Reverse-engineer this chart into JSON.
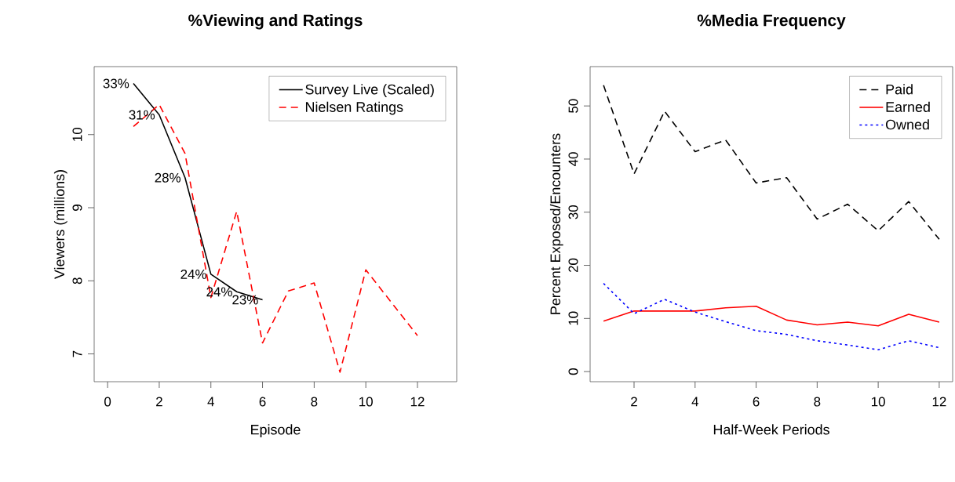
{
  "chart_data": [
    {
      "type": "line",
      "title": "%Viewing and Ratings",
      "xlabel": "Episode",
      "ylabel": "Viewers (millions)",
      "xlim": [
        -0.52,
        13.52
      ],
      "ylim": [
        6.62,
        10.93
      ],
      "xticks": [
        0,
        2,
        4,
        6,
        8,
        10,
        12
      ],
      "yticks": [
        7,
        8,
        9,
        10
      ],
      "legend": "top right",
      "annotations": [
        {
          "text": "33%",
          "x": 1,
          "y": 10.7
        },
        {
          "text": "31%",
          "x": 2,
          "y": 10.27
        },
        {
          "text": "28%",
          "x": 3,
          "y": 9.41
        },
        {
          "text": "24%",
          "x": 4,
          "y": 8.09
        },
        {
          "text": "24%",
          "x": 5,
          "y": 7.85
        },
        {
          "text": "23%",
          "x": 6,
          "y": 7.74
        }
      ],
      "series": [
        {
          "name": "Survey Live (Scaled)",
          "color": "#000000",
          "line_style": "solid",
          "x": [
            1,
            2,
            3,
            4,
            5,
            6
          ],
          "values": [
            10.7,
            10.27,
            9.41,
            8.09,
            7.85,
            7.74
          ]
        },
        {
          "name": "Nielsen Ratings",
          "color": "#ff0000",
          "line_style": "dashed",
          "x": [
            1,
            2,
            3,
            4,
            5,
            6,
            7,
            8,
            9,
            10,
            12
          ],
          "values": [
            10.11,
            10.41,
            9.74,
            7.77,
            8.95,
            7.15,
            7.86,
            7.97,
            6.75,
            8.15,
            7.25
          ]
        }
      ]
    },
    {
      "type": "line",
      "title": "%Media Frequency",
      "xlabel": "Half-Week Periods",
      "ylabel": "Percent Exposed/Encounters",
      "xlim": [
        0.56,
        12.44
      ],
      "ylim": [
        -1.9,
        57.4
      ],
      "xticks": [
        2,
        4,
        6,
        8,
        10,
        12
      ],
      "yticks": [
        0,
        10,
        20,
        30,
        40,
        50
      ],
      "legend": "top right",
      "x": [
        1,
        2,
        3,
        4,
        5,
        6,
        7,
        8,
        9,
        10,
        11,
        12
      ],
      "series": [
        {
          "name": "Paid",
          "color": "#000000",
          "line_style": "dashed",
          "values": [
            53.9,
            37.2,
            49.0,
            41.4,
            43.6,
            35.5,
            36.5,
            28.7,
            31.5,
            26.5,
            32.0,
            24.9
          ]
        },
        {
          "name": "Earned",
          "color": "#ff0000",
          "line_style": "solid",
          "values": [
            9.5,
            11.4,
            11.4,
            11.4,
            12.0,
            12.3,
            9.7,
            8.8,
            9.3,
            8.6,
            10.8,
            9.3
          ]
        },
        {
          "name": "Owned",
          "color": "#0000ff",
          "line_style": "dotted",
          "values": [
            16.6,
            10.9,
            13.6,
            11.2,
            9.4,
            7.7,
            7.0,
            5.8,
            5.0,
            4.1,
            5.8,
            4.5
          ]
        }
      ]
    }
  ]
}
